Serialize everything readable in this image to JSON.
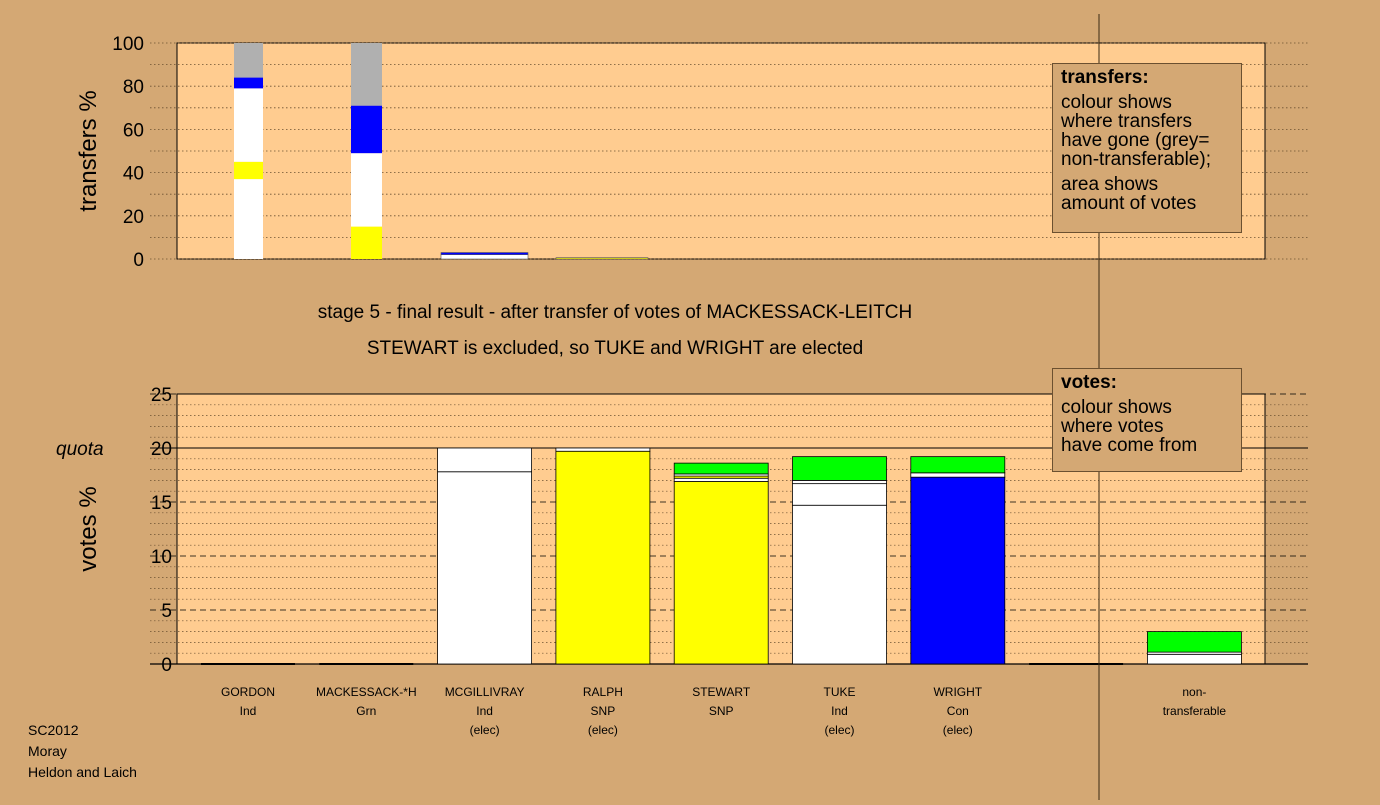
{
  "headline": {
    "stage": "stage 5 - final result - after transfer of votes of MACKESSACK-LEITCH",
    "result": "STEWART is excluded, so TUKE and WRIGHT are elected"
  },
  "transfers_legend": {
    "title": "transfers:",
    "lines": [
      "colour shows",
      "where transfers",
      "have gone (grey=",
      "non-transferable);",
      "area shows",
      "amount of votes"
    ]
  },
  "votes_legend": {
    "title": "votes:",
    "lines": [
      "colour shows",
      "where votes",
      "have come from"
    ]
  },
  "footer": {
    "election": "SC2012",
    "council": "Moray",
    "ward": "Heldon and Laich"
  },
  "colors": {
    "background": "#d4a874",
    "plot": "#ffcc90",
    "Ind": "#ffffff",
    "SNP": "#ffff00",
    "Con": "#0000ff",
    "Grn": "#00ff00",
    "nontransferable": "#b0b0b0"
  },
  "chart_data": [
    {
      "type": "bar",
      "stacked": true,
      "ylabel": "transfers %",
      "ylim": [
        0,
        100
      ],
      "yticks": [
        "0",
        "20",
        "40",
        "60",
        "80",
        "100"
      ],
      "columns": [
        {
          "segments": [
            {
              "party": "Ind",
              "value": 37
            },
            {
              "party": "SNP",
              "value": 8
            },
            {
              "party": "Ind",
              "value": 34
            },
            {
              "party": "Con",
              "value": 5
            },
            {
              "party": "nontransferable",
              "value": 16
            }
          ]
        },
        {
          "segments": [
            {
              "party": "SNP",
              "value": 15
            },
            {
              "party": "Ind",
              "value": 34
            },
            {
              "party": "Con",
              "value": 22
            },
            {
              "party": "nontransferable",
              "value": 29
            }
          ]
        },
        {
          "segments": [
            {
              "party": "Ind",
              "value": 2
            },
            {
              "party": "Con",
              "value": 1
            }
          ]
        },
        {
          "segments": [
            {
              "party": "SNP",
              "value": 0.6
            }
          ]
        }
      ]
    },
    {
      "type": "bar",
      "stacked": true,
      "ylabel": "votes %",
      "ylim": [
        0,
        25
      ],
      "yticks": [
        "0",
        "5",
        "10",
        "15",
        "20",
        "25"
      ],
      "quota": 20,
      "quota_label": "quota",
      "candidates": [
        {
          "name": "GORDON",
          "party": "Ind",
          "status": "",
          "segments": []
        },
        {
          "name": "MACKESSACK-*H",
          "party": "Grn",
          "status": "",
          "segments": []
        },
        {
          "name": "MCGILLIVRAY",
          "party": "Ind",
          "status": "(elec)",
          "segments": [
            {
              "party": "Ind",
              "value": 17.8
            },
            {
              "party": "Ind",
              "value": 2.2
            }
          ]
        },
        {
          "name": "RALPH",
          "party": "SNP",
          "status": "(elec)",
          "segments": [
            {
              "party": "SNP",
              "value": 19.7
            },
            {
              "party": "Ind",
              "value": 0.3
            }
          ]
        },
        {
          "name": "STEWART",
          "party": "SNP",
          "status": "",
          "segments": [
            {
              "party": "SNP",
              "value": 16.9
            },
            {
              "party": "Ind",
              "value": 0.3
            },
            {
              "party": "SNP",
              "value": 0.2
            },
            {
              "party": "Ind",
              "value": 0.2
            },
            {
              "party": "Grn",
              "value": 1.0
            }
          ]
        },
        {
          "name": "TUKE",
          "party": "Ind",
          "status": "(elec)",
          "segments": [
            {
              "party": "Ind",
              "value": 14.7
            },
            {
              "party": "Ind",
              "value": 2.0
            },
            {
              "party": "Ind",
              "value": 0.3
            },
            {
              "party": "Grn",
              "value": 2.2
            }
          ]
        },
        {
          "name": "WRIGHT",
          "party": "Con",
          "status": "(elec)",
          "segments": [
            {
              "party": "Con",
              "value": 17.3
            },
            {
              "party": "Ind",
              "value": 0.4
            },
            {
              "party": "Grn",
              "value": 1.5
            }
          ]
        }
      ],
      "nontransferable": {
        "name": "non-",
        "party": "transferable",
        "segments": [
          {
            "party": "Ind",
            "value": 0.9
          },
          {
            "party": "Ind",
            "value": 0.2
          },
          {
            "party": "Grn",
            "value": 1.9
          }
        ]
      }
    }
  ]
}
